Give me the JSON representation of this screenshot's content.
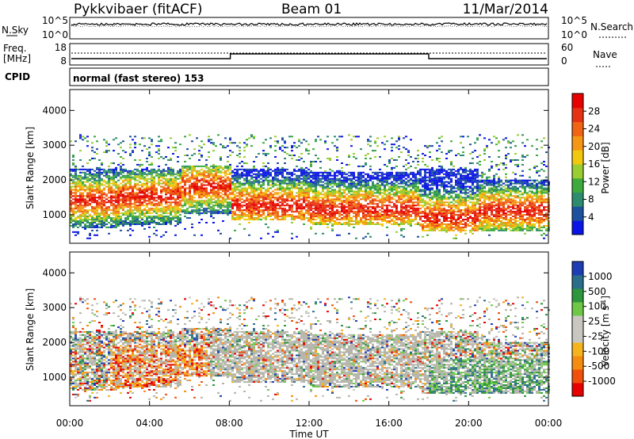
{
  "header": {
    "radar": "Pykkvibaer (fitACF)",
    "beam": "Beam 01",
    "date": "11/Mar/2014"
  },
  "noise_panel": {
    "left_label": "N.Sky",
    "right_label": "N.Search",
    "left_ticks": [
      "10^5",
      "10^0"
    ],
    "right_ticks": [
      "10^5",
      "10^0"
    ]
  },
  "freq_panel": {
    "left_label_1": "Freq.",
    "left_label_2": "[MHz]",
    "right_label": "Nave",
    "left_ticks": [
      "18",
      "8"
    ],
    "right_ticks": [
      "60",
      "0"
    ]
  },
  "cpid_panel": {
    "label": "CPID",
    "mode": "normal (fast stereo) 153"
  },
  "colors": {
    "power_scale": [
      "#0a14e6",
      "#1e50a0",
      "#2e8c6e",
      "#3caa3c",
      "#9acd32",
      "#f2c80f",
      "#f59614",
      "#f06414",
      "#e63214",
      "#e60000"
    ],
    "velocity_scale": [
      "#e60000",
      "#f0500a",
      "#f58c0f",
      "#f5b41e",
      "#c8c8c0",
      "#c8c8c0",
      "#6ec846",
      "#2e963c",
      "#2a6e8c",
      "#1e3cb4"
    ],
    "ground_scatter": "#b4b4aa"
  },
  "chart_data": [
    {
      "type": "heatmap",
      "name": "power",
      "ylabel": "Slant Range [km]",
      "colorbar_label": "Power [dB]",
      "colorbar_ticks": [
        "4",
        "8",
        "12",
        "16",
        "20",
        "24",
        "28"
      ],
      "y_ticks": [
        "1000",
        "2000",
        "3000",
        "4000"
      ],
      "ylim": [
        180,
        4600
      ],
      "xlim_hours": [
        0,
        24
      ],
      "bands": [
        {
          "start_h": 0.0,
          "end_h": 2.5,
          "r_low": 600,
          "r_high": 2300,
          "core": 1400
        },
        {
          "start_h": 2.5,
          "end_h": 5.5,
          "r_low": 700,
          "r_high": 2300,
          "core": 1500
        },
        {
          "start_h": 5.5,
          "end_h": 8.0,
          "r_low": 1000,
          "r_high": 2400,
          "core": 1800
        },
        {
          "start_h": 8.0,
          "end_h": 12.0,
          "r_low": 800,
          "r_high": 2300,
          "core": 1250
        },
        {
          "start_h": 12.0,
          "end_h": 17.5,
          "r_low": 700,
          "r_high": 2200,
          "core": 1150
        },
        {
          "start_h": 17.5,
          "end_h": 20.5,
          "r_low": 500,
          "r_high": 2300,
          "core": 900
        },
        {
          "start_h": 20.5,
          "end_h": 24.0,
          "r_low": 500,
          "r_high": 2000,
          "core": 1100
        }
      ]
    },
    {
      "type": "heatmap",
      "name": "velocity",
      "ylabel": "Slant Range [km]",
      "colorbar_label": "Velocity [m s^-1]",
      "colorbar_ticks": [
        "-1000",
        "-500",
        "-100",
        "-25",
        "25",
        "100",
        "500",
        "1000"
      ],
      "y_ticks": [
        "1000",
        "2000",
        "3000",
        "4000"
      ],
      "ylim": [
        180,
        4600
      ],
      "xlim_hours": [
        0,
        24
      ]
    }
  ],
  "x_axis": {
    "ticks": [
      "00:00",
      "04:00",
      "08:00",
      "12:00",
      "16:00",
      "20:00",
      "00:00"
    ],
    "label": "Time UT"
  }
}
